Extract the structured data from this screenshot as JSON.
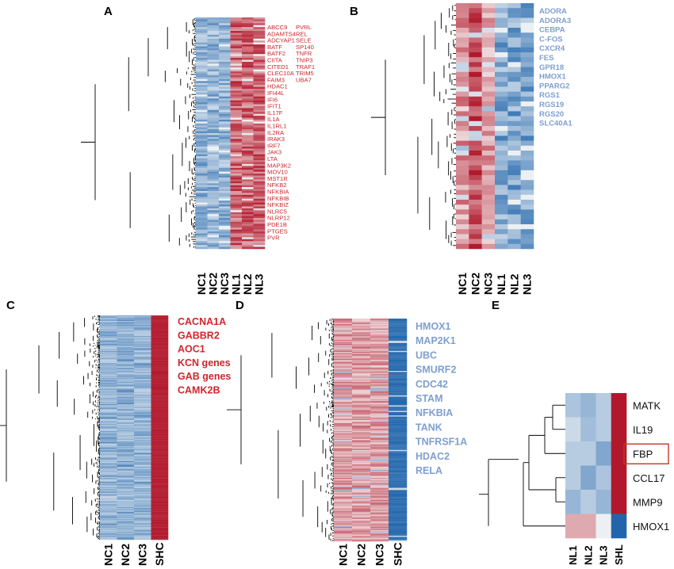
{
  "figure": {
    "panel_labels": [
      "A",
      "B",
      "C",
      "D",
      "E"
    ],
    "colors": {
      "red": "#b2182b",
      "blue": "#2166ac",
      "label_red": "#d0252e",
      "label_blue": "#7f9fcf",
      "dendro": "#000000",
      "highlight_box": "#c0392b"
    }
  },
  "chart_data": [
    {
      "panel": "A",
      "type": "heatmap",
      "columns": [
        "NC1",
        "NC2",
        "NC3",
        "NL1",
        "NL2",
        "NL3"
      ],
      "groups": {
        "low": [
          "NC1",
          "NC2",
          "NC3"
        ],
        "high": [
          "NL1",
          "NL2",
          "NL3"
        ]
      },
      "rows_approx": 120,
      "gene_labels_col1": [
        "ABCC9",
        "ADAMTS4",
        "ADCYAP1",
        "BATF",
        "BATF2",
        "CIITA",
        "CITED1",
        "CLEC10A",
        "FAIM3",
        "HDAC1",
        "IFI44L",
        "IFI6",
        "IFIT1",
        "IL17F",
        "IL1A",
        "IL1RL1",
        "IL2RA",
        "IRAK3",
        "IRF7",
        "JAK3",
        "LTA",
        "MAP3K2",
        "MOV10",
        "MST1R",
        "NFKB2",
        "NFKBIA",
        "NFKBIB",
        "NFKBIZ",
        "NLRC5",
        "NLRP12",
        "PDE1B",
        "PTGES",
        "PVR"
      ],
      "gene_labels_col2": [
        "PVRL",
        "REL",
        "SELE",
        "SP140",
        "TNFR",
        "TNIP3",
        "TRAF1",
        "TRIM5",
        "UBA7"
      ],
      "label_color": "red"
    },
    {
      "panel": "B",
      "type": "heatmap",
      "columns": [
        "NC1",
        "NC2",
        "NC3",
        "NL1",
        "NL2",
        "NL3"
      ],
      "groups": {
        "high": [
          "NC1",
          "NC2",
          "NC3"
        ],
        "low": [
          "NL1",
          "NL2",
          "NL3"
        ]
      },
      "rows_approx": 50,
      "gene_labels": [
        "ADORA",
        "ADORA3",
        "CEBPA",
        "C-FOS",
        "CXCR4",
        "FES",
        "GPR18",
        "HMOX1",
        "PPARG2",
        "RGS1",
        "RGS19",
        "RGS20",
        "SLC40A1"
      ],
      "label_color": "blue"
    },
    {
      "panel": "C",
      "type": "heatmap",
      "columns": [
        "NC1",
        "NC2",
        "NC3",
        "SHC"
      ],
      "groups": {
        "low": [
          "NC1",
          "NC2",
          "NC3"
        ],
        "high": [
          "SHC"
        ]
      },
      "rows_approx": 240,
      "gene_labels": [
        "CACNA1A",
        "GABBR2",
        "AOC1",
        "KCN genes",
        "GAB genes",
        "CAMK2B"
      ],
      "label_color": "red"
    },
    {
      "panel": "D",
      "type": "heatmap",
      "columns": [
        "NC1",
        "NC2",
        "NC3",
        "SHC"
      ],
      "groups": {
        "high": [
          "NC1",
          "NC2",
          "NC3"
        ],
        "low": [
          "SHC"
        ]
      },
      "rows_approx": 200,
      "gene_labels": [
        "HMOX1",
        "MAP2K1",
        "UBC",
        "SMURF2",
        "CDC42",
        "STAM",
        "NFKBIA",
        "TANK",
        "TNFRSF1A",
        "HDAC2",
        "RELA"
      ],
      "label_color": "blue"
    },
    {
      "panel": "E",
      "type": "heatmap",
      "columns": [
        "NL1",
        "NL2",
        "NL3",
        "SHL"
      ],
      "rows": [
        "MATK",
        "IL19",
        "FBP",
        "CCL17",
        "MMP9",
        "HMOX1"
      ],
      "values": [
        [
          -0.35,
          -0.45,
          -0.3,
          1.0
        ],
        [
          -0.2,
          -0.4,
          -0.3,
          1.0
        ],
        [
          -0.3,
          -0.3,
          -0.55,
          1.0
        ],
        [
          -0.3,
          -0.55,
          -0.35,
          1.0
        ],
        [
          -0.45,
          -0.3,
          -0.45,
          1.0
        ],
        [
          0.35,
          0.35,
          -0.05,
          -1.0
        ]
      ],
      "highlighted_row": "FBP",
      "label_color": "black"
    }
  ]
}
